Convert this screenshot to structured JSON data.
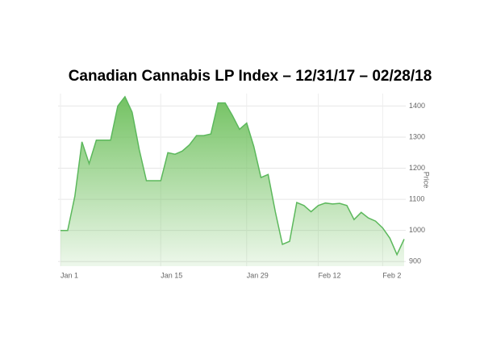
{
  "chart_data": {
    "type": "area",
    "title": "Canadian Cannabis LP Index – 12/31/17 – 02/28/18",
    "y_label": "Price",
    "categories": [
      "Jan 1",
      null,
      null,
      null,
      null,
      null,
      null,
      null,
      null,
      null,
      null,
      null,
      null,
      null,
      "Jan 15",
      null,
      null,
      null,
      null,
      null,
      null,
      null,
      null,
      null,
      null,
      null,
      "Jan 29",
      null,
      null,
      null,
      null,
      null,
      null,
      null,
      null,
      null,
      "Feb 12",
      null,
      null,
      null,
      null,
      null,
      null,
      null,
      null,
      "Feb 2",
      null,
      null,
      null
    ],
    "values": [
      1000,
      1000,
      1110,
      1285,
      1215,
      1290,
      1290,
      1290,
      1400,
      1430,
      1380,
      1260,
      1160,
      1160,
      1160,
      1250,
      1245,
      1255,
      1275,
      1305,
      1305,
      1310,
      1410,
      1410,
      1370,
      1325,
      1345,
      1270,
      1170,
      1180,
      1060,
      955,
      965,
      1090,
      1080,
      1060,
      1080,
      1088,
      1085,
      1087,
      1080,
      1035,
      1058,
      1040,
      1030,
      1008,
      975,
      922,
      972
    ],
    "color": "#5cb85c",
    "ylim": [
      885,
      1440
    ],
    "yticks": [
      900,
      1000,
      1100,
      1200,
      1300,
      1400
    ],
    "grid": true,
    "y_axis_side": "right"
  }
}
